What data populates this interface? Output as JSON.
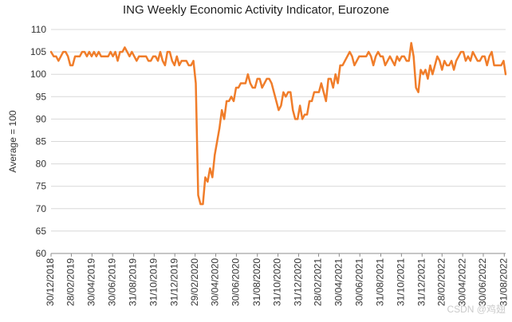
{
  "chart_data": {
    "type": "line",
    "title": "ING Weekly Economic Activity Indicator, Eurozone",
    "ylabel": "Average = 100",
    "xlabel": "",
    "ylim": [
      60,
      110
    ],
    "yticks": [
      60,
      65,
      70,
      75,
      80,
      85,
      90,
      95,
      100,
      105,
      110
    ],
    "xlim": [
      "2018-12-30",
      "2022-09-04"
    ],
    "xtick_labels": [
      {
        "date": "2018-12-30",
        "label": "30/12/2018"
      },
      {
        "date": "2019-02-28",
        "label": "28/02/2019"
      },
      {
        "date": "2019-04-30",
        "label": "30/04/2019"
      },
      {
        "date": "2019-06-30",
        "label": "30/06/2019"
      },
      {
        "date": "2019-08-31",
        "label": "31/08/2019"
      },
      {
        "date": "2019-10-31",
        "label": "31/10/2019"
      },
      {
        "date": "2019-12-31",
        "label": "31/12/2019"
      },
      {
        "date": "2020-02-29",
        "label": "29/02/2020"
      },
      {
        "date": "2020-04-30",
        "label": "30/04/2020"
      },
      {
        "date": "2020-06-30",
        "label": "30/06/2020"
      },
      {
        "date": "2020-08-31",
        "label": "31/08/2020"
      },
      {
        "date": "2020-10-31",
        "label": "31/10/2020"
      },
      {
        "date": "2020-12-31",
        "label": "31/12/2020"
      },
      {
        "date": "2021-02-28",
        "label": "28/02/2021"
      },
      {
        "date": "2021-04-30",
        "label": "30/04/2021"
      },
      {
        "date": "2021-06-30",
        "label": "30/06/2021"
      },
      {
        "date": "2021-08-31",
        "label": "31/08/2021"
      },
      {
        "date": "2021-10-31",
        "label": "31/10/2021"
      },
      {
        "date": "2021-12-31",
        "label": "31/12/2021"
      },
      {
        "date": "2022-02-28",
        "label": "28/02/2022"
      },
      {
        "date": "2022-04-30",
        "label": "30/04/2022"
      },
      {
        "date": "2022-06-30",
        "label": "30/06/2022"
      },
      {
        "date": "2022-08-31",
        "label": "31/08/2022"
      }
    ],
    "grid": true,
    "grid_axis": "y",
    "legend": "none",
    "line_color": "#f07d2a",
    "grid_color": "#d8d8d8",
    "series": [
      {
        "points": [
          [
            "2018-12-30",
            105
          ],
          [
            "2019-01-07",
            104
          ],
          [
            "2019-01-14",
            104
          ],
          [
            "2019-01-21",
            103
          ],
          [
            "2019-01-28",
            104
          ],
          [
            "2019-02-04",
            105
          ],
          [
            "2019-02-11",
            105
          ],
          [
            "2019-02-18",
            104
          ],
          [
            "2019-02-25",
            102
          ],
          [
            "2019-03-04",
            102
          ],
          [
            "2019-03-11",
            104
          ],
          [
            "2019-03-18",
            104
          ],
          [
            "2019-03-25",
            104
          ],
          [
            "2019-04-01",
            105
          ],
          [
            "2019-04-08",
            105
          ],
          [
            "2019-04-15",
            104
          ],
          [
            "2019-04-22",
            105
          ],
          [
            "2019-04-29",
            104
          ],
          [
            "2019-05-06",
            105
          ],
          [
            "2019-05-13",
            104
          ],
          [
            "2019-05-20",
            105
          ],
          [
            "2019-05-27",
            104
          ],
          [
            "2019-06-03",
            104
          ],
          [
            "2019-06-10",
            104
          ],
          [
            "2019-06-17",
            104
          ],
          [
            "2019-06-24",
            105
          ],
          [
            "2019-07-01",
            104
          ],
          [
            "2019-07-08",
            105
          ],
          [
            "2019-07-15",
            103
          ],
          [
            "2019-07-22",
            105
          ],
          [
            "2019-07-29",
            105
          ],
          [
            "2019-08-05",
            106
          ],
          [
            "2019-08-12",
            105
          ],
          [
            "2019-08-19",
            104
          ],
          [
            "2019-08-26",
            105
          ],
          [
            "2019-09-02",
            104
          ],
          [
            "2019-09-09",
            103
          ],
          [
            "2019-09-16",
            104
          ],
          [
            "2019-09-23",
            104
          ],
          [
            "2019-09-30",
            104
          ],
          [
            "2019-10-07",
            104
          ],
          [
            "2019-10-14",
            103
          ],
          [
            "2019-10-21",
            103
          ],
          [
            "2019-10-28",
            104
          ],
          [
            "2019-11-04",
            104
          ],
          [
            "2019-11-11",
            103
          ],
          [
            "2019-11-18",
            105
          ],
          [
            "2019-11-25",
            103
          ],
          [
            "2019-12-02",
            102
          ],
          [
            "2019-12-09",
            105
          ],
          [
            "2019-12-16",
            105
          ],
          [
            "2019-12-23",
            103
          ],
          [
            "2019-12-30",
            102
          ],
          [
            "2020-01-06",
            104
          ],
          [
            "2020-01-13",
            102
          ],
          [
            "2020-01-20",
            103
          ],
          [
            "2020-01-27",
            103
          ],
          [
            "2020-02-03",
            103
          ],
          [
            "2020-02-10",
            102
          ],
          [
            "2020-02-17",
            102
          ],
          [
            "2020-02-24",
            103
          ],
          [
            "2020-03-02",
            98
          ],
          [
            "2020-03-09",
            73
          ],
          [
            "2020-03-16",
            71
          ],
          [
            "2020-03-23",
            71
          ],
          [
            "2020-03-30",
            77
          ],
          [
            "2020-04-06",
            76
          ],
          [
            "2020-04-13",
            79
          ],
          [
            "2020-04-20",
            77
          ],
          [
            "2020-04-27",
            82
          ],
          [
            "2020-05-04",
            85
          ],
          [
            "2020-05-11",
            88
          ],
          [
            "2020-05-18",
            92
          ],
          [
            "2020-05-25",
            90
          ],
          [
            "2020-06-01",
            94
          ],
          [
            "2020-06-08",
            94
          ],
          [
            "2020-06-15",
            95
          ],
          [
            "2020-06-22",
            94
          ],
          [
            "2020-06-29",
            97
          ],
          [
            "2020-07-06",
            97
          ],
          [
            "2020-07-13",
            98
          ],
          [
            "2020-07-20",
            98
          ],
          [
            "2020-07-27",
            98
          ],
          [
            "2020-08-03",
            100
          ],
          [
            "2020-08-10",
            98
          ],
          [
            "2020-08-17",
            97
          ],
          [
            "2020-08-24",
            97
          ],
          [
            "2020-08-31",
            99
          ],
          [
            "2020-09-07",
            99
          ],
          [
            "2020-09-14",
            97
          ],
          [
            "2020-09-21",
            98
          ],
          [
            "2020-09-28",
            99
          ],
          [
            "2020-10-05",
            99
          ],
          [
            "2020-10-12",
            98
          ],
          [
            "2020-10-19",
            96
          ],
          [
            "2020-10-26",
            94
          ],
          [
            "2020-11-02",
            92
          ],
          [
            "2020-11-09",
            93
          ],
          [
            "2020-11-16",
            96
          ],
          [
            "2020-11-23",
            95
          ],
          [
            "2020-11-30",
            96
          ],
          [
            "2020-12-07",
            96
          ],
          [
            "2020-12-14",
            92
          ],
          [
            "2020-12-21",
            90
          ],
          [
            "2020-12-28",
            90
          ],
          [
            "2021-01-04",
            93
          ],
          [
            "2021-01-11",
            90
          ],
          [
            "2021-01-18",
            91
          ],
          [
            "2021-01-25",
            91
          ],
          [
            "2021-02-01",
            94
          ],
          [
            "2021-02-08",
            94
          ],
          [
            "2021-02-15",
            96
          ],
          [
            "2021-02-22",
            96
          ],
          [
            "2021-03-01",
            96
          ],
          [
            "2021-03-08",
            98
          ],
          [
            "2021-03-15",
            96
          ],
          [
            "2021-03-22",
            94
          ],
          [
            "2021-03-29",
            99
          ],
          [
            "2021-04-05",
            99
          ],
          [
            "2021-04-12",
            97
          ],
          [
            "2021-04-19",
            100
          ],
          [
            "2021-04-26",
            98
          ],
          [
            "2021-05-03",
            102
          ],
          [
            "2021-05-10",
            102
          ],
          [
            "2021-05-17",
            103
          ],
          [
            "2021-05-24",
            104
          ],
          [
            "2021-05-31",
            105
          ],
          [
            "2021-06-07",
            104
          ],
          [
            "2021-06-14",
            102
          ],
          [
            "2021-06-21",
            103
          ],
          [
            "2021-06-28",
            104
          ],
          [
            "2021-07-05",
            104
          ],
          [
            "2021-07-12",
            104
          ],
          [
            "2021-07-19",
            104
          ],
          [
            "2021-07-26",
            105
          ],
          [
            "2021-08-02",
            104
          ],
          [
            "2021-08-09",
            102
          ],
          [
            "2021-08-16",
            104
          ],
          [
            "2021-08-23",
            105
          ],
          [
            "2021-08-30",
            104
          ],
          [
            "2021-09-06",
            104
          ],
          [
            "2021-09-13",
            102
          ],
          [
            "2021-09-20",
            103
          ],
          [
            "2021-09-27",
            104
          ],
          [
            "2021-10-04",
            103
          ],
          [
            "2021-10-11",
            102
          ],
          [
            "2021-10-18",
            104
          ],
          [
            "2021-10-25",
            103
          ],
          [
            "2021-11-01",
            104
          ],
          [
            "2021-11-08",
            104
          ],
          [
            "2021-11-15",
            103
          ],
          [
            "2021-11-22",
            103
          ],
          [
            "2021-11-29",
            107
          ],
          [
            "2021-12-06",
            104
          ],
          [
            "2021-12-13",
            97
          ],
          [
            "2021-12-20",
            96
          ],
          [
            "2021-12-27",
            101
          ],
          [
            "2022-01-03",
            100
          ],
          [
            "2022-01-10",
            101
          ],
          [
            "2022-01-17",
            99
          ],
          [
            "2022-01-24",
            102
          ],
          [
            "2022-01-31",
            100
          ],
          [
            "2022-02-07",
            102
          ],
          [
            "2022-02-14",
            104
          ],
          [
            "2022-02-21",
            103
          ],
          [
            "2022-02-28",
            101
          ],
          [
            "2022-03-07",
            103
          ],
          [
            "2022-03-14",
            102
          ],
          [
            "2022-03-21",
            102
          ],
          [
            "2022-03-28",
            103
          ],
          [
            "2022-04-04",
            101
          ],
          [
            "2022-04-11",
            103
          ],
          [
            "2022-04-18",
            104
          ],
          [
            "2022-04-25",
            105
          ],
          [
            "2022-05-02",
            105
          ],
          [
            "2022-05-09",
            103
          ],
          [
            "2022-05-16",
            104
          ],
          [
            "2022-05-23",
            103
          ],
          [
            "2022-05-30",
            105
          ],
          [
            "2022-06-06",
            104
          ],
          [
            "2022-06-13",
            103
          ],
          [
            "2022-06-20",
            103
          ],
          [
            "2022-06-27",
            104
          ],
          [
            "2022-07-04",
            104
          ],
          [
            "2022-07-11",
            102
          ],
          [
            "2022-07-18",
            104
          ],
          [
            "2022-07-25",
            105
          ],
          [
            "2022-08-01",
            102
          ],
          [
            "2022-08-08",
            102
          ],
          [
            "2022-08-15",
            102
          ],
          [
            "2022-08-22",
            102
          ],
          [
            "2022-08-29",
            103
          ],
          [
            "2022-09-04",
            100
          ]
        ]
      }
    ]
  },
  "watermark": "CSDN @鸡翅"
}
